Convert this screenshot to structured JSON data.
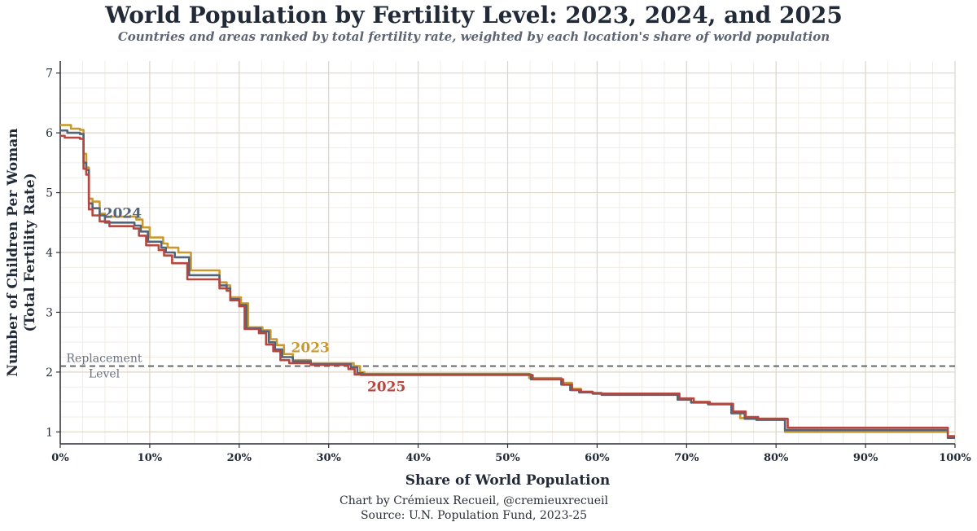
{
  "header": {
    "title": "World Population by Fertility Level: 2023, 2024, and 2025",
    "subtitle": "Countries and areas ranked by total fertility rate, weighted by each location's share of world population"
  },
  "footer": {
    "credit": "Chart by Crémieux Recueil, @cremieuxrecueil",
    "source": "Source: U.N. Population Fund, 2023-25"
  },
  "chart_data": {
    "type": "line",
    "step": true,
    "title": "World Population by Fertility Level: 2023, 2024, and 2025",
    "xlabel": "Share of World Population",
    "ylabel_line1": "Number of Children Per Woman",
    "ylabel_line2": "(Total Fertility Rate)",
    "xlim": [
      0,
      100
    ],
    "ylim": [
      0.8,
      7.2
    ],
    "x_ticks": [
      0,
      10,
      20,
      30,
      40,
      50,
      60,
      70,
      80,
      90,
      100
    ],
    "x_tick_labels": [
      "0%",
      "10%",
      "20%",
      "30%",
      "40%",
      "50%",
      "60%",
      "70%",
      "80%",
      "90%",
      "100%"
    ],
    "y_ticks": [
      1,
      2,
      3,
      4,
      5,
      6,
      7
    ],
    "y_tick_labels": [
      "1",
      "2",
      "3",
      "4",
      "5",
      "6",
      "7"
    ],
    "grid": true,
    "reference_line": {
      "y": 2.1,
      "label_line1": "Replacement",
      "label_line2": "Level",
      "color": "#555555"
    },
    "series": [
      {
        "name": "2023",
        "label": "2023",
        "color": "#c9992e",
        "label_anchor": [
          25.8,
          2.33
        ],
        "x": [
          0,
          1.2,
          2.2,
          2.6,
          2.9,
          3.2,
          3.6,
          4.4,
          5,
          8.5,
          9.2,
          10,
          11.5,
          12,
          13.2,
          14.6,
          17.8,
          18.6,
          19,
          20.2,
          21,
          22.6,
          23.5,
          24.2,
          25,
          26,
          28,
          32.8,
          33.5,
          34,
          52.4,
          56,
          57.2,
          58.2,
          59.5,
          60.5,
          69,
          70.5,
          72.4,
          75,
          76,
          77.8,
          81,
          98.7,
          99.2,
          100
        ],
        "y": [
          6.13,
          6.07,
          6.05,
          5.65,
          5.42,
          4.9,
          4.85,
          4.65,
          4.6,
          4.55,
          4.42,
          4.25,
          4.15,
          4.08,
          4.0,
          3.7,
          3.5,
          3.45,
          3.25,
          3.15,
          2.75,
          2.7,
          2.55,
          2.45,
          2.3,
          2.2,
          2.15,
          2.1,
          2.0,
          1.97,
          1.9,
          1.82,
          1.72,
          1.67,
          1.64,
          1.63,
          1.55,
          1.5,
          1.47,
          1.33,
          1.23,
          1.22,
          1.0,
          1.0,
          0.9,
          0.9
        ]
      },
      {
        "name": "2024",
        "label": "2024",
        "color": "#536478",
        "label_anchor": [
          4.8,
          4.58
        ],
        "x": [
          0,
          0.8,
          2.2,
          2.6,
          2.9,
          3.2,
          3.6,
          4.4,
          5,
          8.3,
          9,
          9.8,
          11.3,
          11.8,
          12.8,
          14.4,
          17.8,
          18.6,
          19,
          20,
          20.8,
          22.4,
          23.3,
          24,
          24.8,
          26,
          28,
          32.5,
          33.2,
          33.8,
          52.6,
          56,
          57,
          58,
          59.5,
          60.5,
          69,
          70.5,
          72.4,
          75,
          76.5,
          77.8,
          81,
          98.7,
          99.2,
          100
        ],
        "y": [
          6.04,
          6.0,
          5.98,
          5.5,
          5.38,
          4.82,
          4.74,
          4.62,
          4.5,
          4.45,
          4.35,
          4.18,
          4.08,
          4.0,
          3.92,
          3.62,
          3.45,
          3.4,
          3.22,
          3.12,
          2.73,
          2.68,
          2.5,
          2.38,
          2.25,
          2.18,
          2.13,
          2.08,
          1.98,
          1.96,
          1.88,
          1.79,
          1.7,
          1.66,
          1.64,
          1.62,
          1.54,
          1.49,
          1.46,
          1.31,
          1.22,
          1.2,
          1.03,
          1.03,
          0.9,
          0.9
        ]
      },
      {
        "name": "2025",
        "label": "2025",
        "color": "#b5473f",
        "label_anchor": [
          34.3,
          1.68
        ],
        "x": [
          0,
          0.5,
          2.2,
          2.6,
          2.9,
          3.2,
          3.6,
          4.4,
          5.5,
          8.2,
          8.8,
          9.6,
          11,
          11.6,
          12.5,
          14.2,
          17.8,
          18.6,
          19,
          20,
          20.6,
          22.2,
          23,
          23.8,
          24.6,
          25.6,
          28,
          32.2,
          32.9,
          33.6,
          52.8,
          56.2,
          57.2,
          58.2,
          59.5,
          60.5,
          69.2,
          70.8,
          72.6,
          75.2,
          76.6,
          78,
          81.3,
          98.6,
          99.2,
          100
        ],
        "y": [
          5.95,
          5.92,
          5.9,
          5.4,
          5.3,
          4.72,
          4.62,
          4.52,
          4.44,
          4.4,
          4.28,
          4.12,
          4.04,
          3.95,
          3.82,
          3.55,
          3.4,
          3.36,
          3.2,
          3.1,
          2.72,
          2.65,
          2.46,
          2.35,
          2.2,
          2.15,
          2.12,
          2.05,
          1.96,
          1.95,
          1.88,
          1.79,
          1.7,
          1.67,
          1.65,
          1.64,
          1.56,
          1.5,
          1.47,
          1.34,
          1.25,
          1.22,
          1.07,
          1.07,
          0.93,
          0.93
        ]
      }
    ]
  }
}
